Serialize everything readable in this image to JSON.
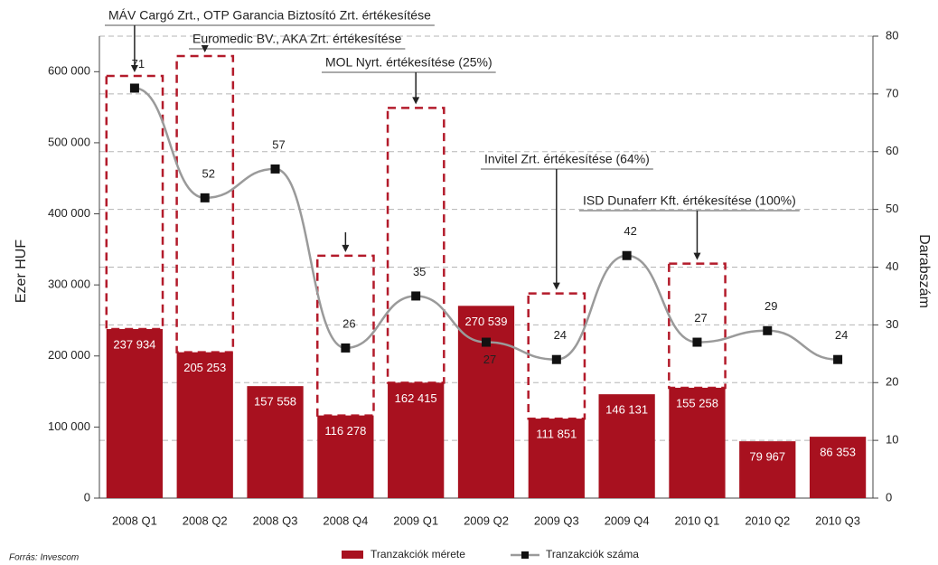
{
  "chart_data": {
    "type": "bar_line",
    "categories": [
      "2008 Q1",
      "2008 Q2",
      "2008 Q3",
      "2008 Q4",
      "2009 Q1",
      "2009 Q2",
      "2009 Q3",
      "2009 Q4",
      "2010 Q1",
      "2010 Q2",
      "2010 Q3"
    ],
    "series": [
      {
        "name": "Tranzakciók mérete",
        "color": "#a8111f",
        "type": "bar",
        "values": [
          237934,
          205253,
          157558,
          116278,
          162415,
          270539,
          111851,
          146131,
          155258,
          79967,
          86353
        ],
        "value_labels": [
          "237 934",
          "205 253",
          "157 558",
          "116 278",
          "162 415",
          "270 539",
          "111 851",
          "146 131",
          "155 258",
          "79 967",
          "86 353"
        ]
      },
      {
        "name": "Tranzakciók száma",
        "color": "#9a9a9a",
        "type": "line",
        "axis": "y2",
        "values": [
          71,
          52,
          57,
          26,
          35,
          27,
          24,
          42,
          27,
          29,
          24
        ]
      }
    ],
    "annotations": [
      {
        "x": "2008 Q1",
        "value": 594000,
        "text": "MÁV Cargó Zrt., OTP Garancia Biztosító Zrt. értékesítése"
      },
      {
        "x": "2008 Q2",
        "value": 622000,
        "text": "Euromedic BV., AKA Zrt. értékesítése"
      },
      {
        "x": "2008 Q4",
        "value": 341000
      },
      {
        "x": "2009 Q1",
        "value": 549000,
        "text": "MOL Nyrt. értékesítése (25%)"
      },
      {
        "x": "2009 Q3",
        "value": 288000,
        "text": "Invitel Zrt. értékesítése (64%)"
      },
      {
        "x": "2010 Q1",
        "value": 330000,
        "text": "ISD Dunaferr Kft. értékesítése (100%)"
      }
    ],
    "ylabel": "Ezer  HUF",
    "y2label": "Darabszám",
    "ylim": [
      0,
      650000
    ],
    "yticks": [
      0,
      {
        "value": 100000,
        "label": "100 000"
      },
      {
        "value": 200000,
        "label": "200 000"
      },
      {
        "value": 300000,
        "label": "300 000"
      },
      {
        "value": 400000,
        "label": "400 000"
      },
      {
        "value": 500000,
        "label": "500 000"
      },
      {
        "value": 600000,
        "label": "600 000"
      }
    ],
    "y2lim": [
      0,
      80
    ],
    "y2ticks": [
      0,
      10,
      20,
      30,
      40,
      50,
      60,
      70,
      80
    ],
    "grid": "y2",
    "legend": "bottom",
    "source": "Forrás: Invescom"
  }
}
